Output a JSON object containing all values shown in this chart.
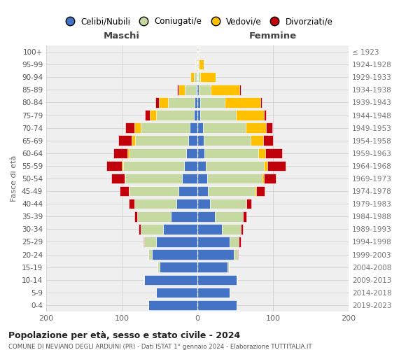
{
  "age_groups": [
    "100+",
    "95-99",
    "90-94",
    "85-89",
    "80-84",
    "75-79",
    "70-74",
    "65-69",
    "60-64",
    "55-59",
    "50-54",
    "45-49",
    "40-44",
    "35-39",
    "30-34",
    "25-29",
    "20-24",
    "15-19",
    "10-14",
    "5-9",
    "0-4"
  ],
  "birth_years": [
    "≤ 1923",
    "1924-1928",
    "1929-1933",
    "1934-1938",
    "1939-1943",
    "1944-1948",
    "1949-1953",
    "1954-1958",
    "1959-1963",
    "1964-1968",
    "1969-1973",
    "1974-1978",
    "1979-1983",
    "1984-1988",
    "1989-1993",
    "1994-1998",
    "1999-2003",
    "2004-2008",
    "2009-2013",
    "2014-2018",
    "2019-2023"
  ],
  "colors": {
    "celibi": "#4472c4",
    "coniugati": "#c5d9a0",
    "vedovi": "#ffc000",
    "divorziati": "#c0000b"
  },
  "maschi": {
    "celibi": [
      1,
      1,
      1,
      2,
      4,
      5,
      10,
      12,
      15,
      18,
      20,
      25,
      28,
      35,
      45,
      55,
      60,
      50,
      70,
      55,
      65
    ],
    "coniugati": [
      0,
      1,
      4,
      15,
      35,
      50,
      65,
      70,
      75,
      80,
      75,
      65,
      55,
      45,
      30,
      15,
      5,
      3,
      1,
      0,
      0
    ],
    "vedovi": [
      0,
      1,
      4,
      8,
      12,
      8,
      8,
      5,
      3,
      2,
      1,
      1,
      0,
      0,
      0,
      0,
      0,
      0,
      0,
      0,
      0
    ],
    "divorziati": [
      0,
      0,
      0,
      2,
      5,
      6,
      12,
      18,
      18,
      20,
      18,
      12,
      8,
      3,
      3,
      1,
      0,
      0,
      0,
      0,
      0
    ]
  },
  "femmine": {
    "celibi": [
      1,
      1,
      1,
      2,
      4,
      4,
      7,
      8,
      9,
      11,
      13,
      14,
      17,
      23,
      32,
      43,
      48,
      40,
      52,
      43,
      52
    ],
    "coniugati": [
      0,
      1,
      3,
      16,
      32,
      47,
      57,
      62,
      72,
      77,
      72,
      62,
      47,
      37,
      25,
      12,
      5,
      2,
      1,
      0,
      0
    ],
    "vedovi": [
      1,
      6,
      20,
      38,
      47,
      37,
      27,
      17,
      9,
      5,
      3,
      2,
      1,
      0,
      0,
      0,
      0,
      0,
      0,
      0,
      0
    ],
    "divorziati": [
      0,
      0,
      0,
      1,
      2,
      3,
      8,
      13,
      22,
      24,
      16,
      11,
      6,
      5,
      3,
      2,
      1,
      0,
      0,
      0,
      0
    ]
  },
  "xlim": 200,
  "title1": "Popolazione per età, sesso e stato civile - 2024",
  "title2": "COMUNE DI NEVIANO DEGLI ARDUINI (PR) - Dati ISTAT 1° gennaio 2024 - Elaborazione TUTTITALIA.IT",
  "ylabel": "Fasce di età",
  "xlabel_maschi": "Maschi",
  "xlabel_femmine": "Femmine",
  "legend_labels": [
    "Celibi/Nubili",
    "Coniugati/e",
    "Vedovi/e",
    "Divorziati/e"
  ],
  "bg_color": "#efefef"
}
